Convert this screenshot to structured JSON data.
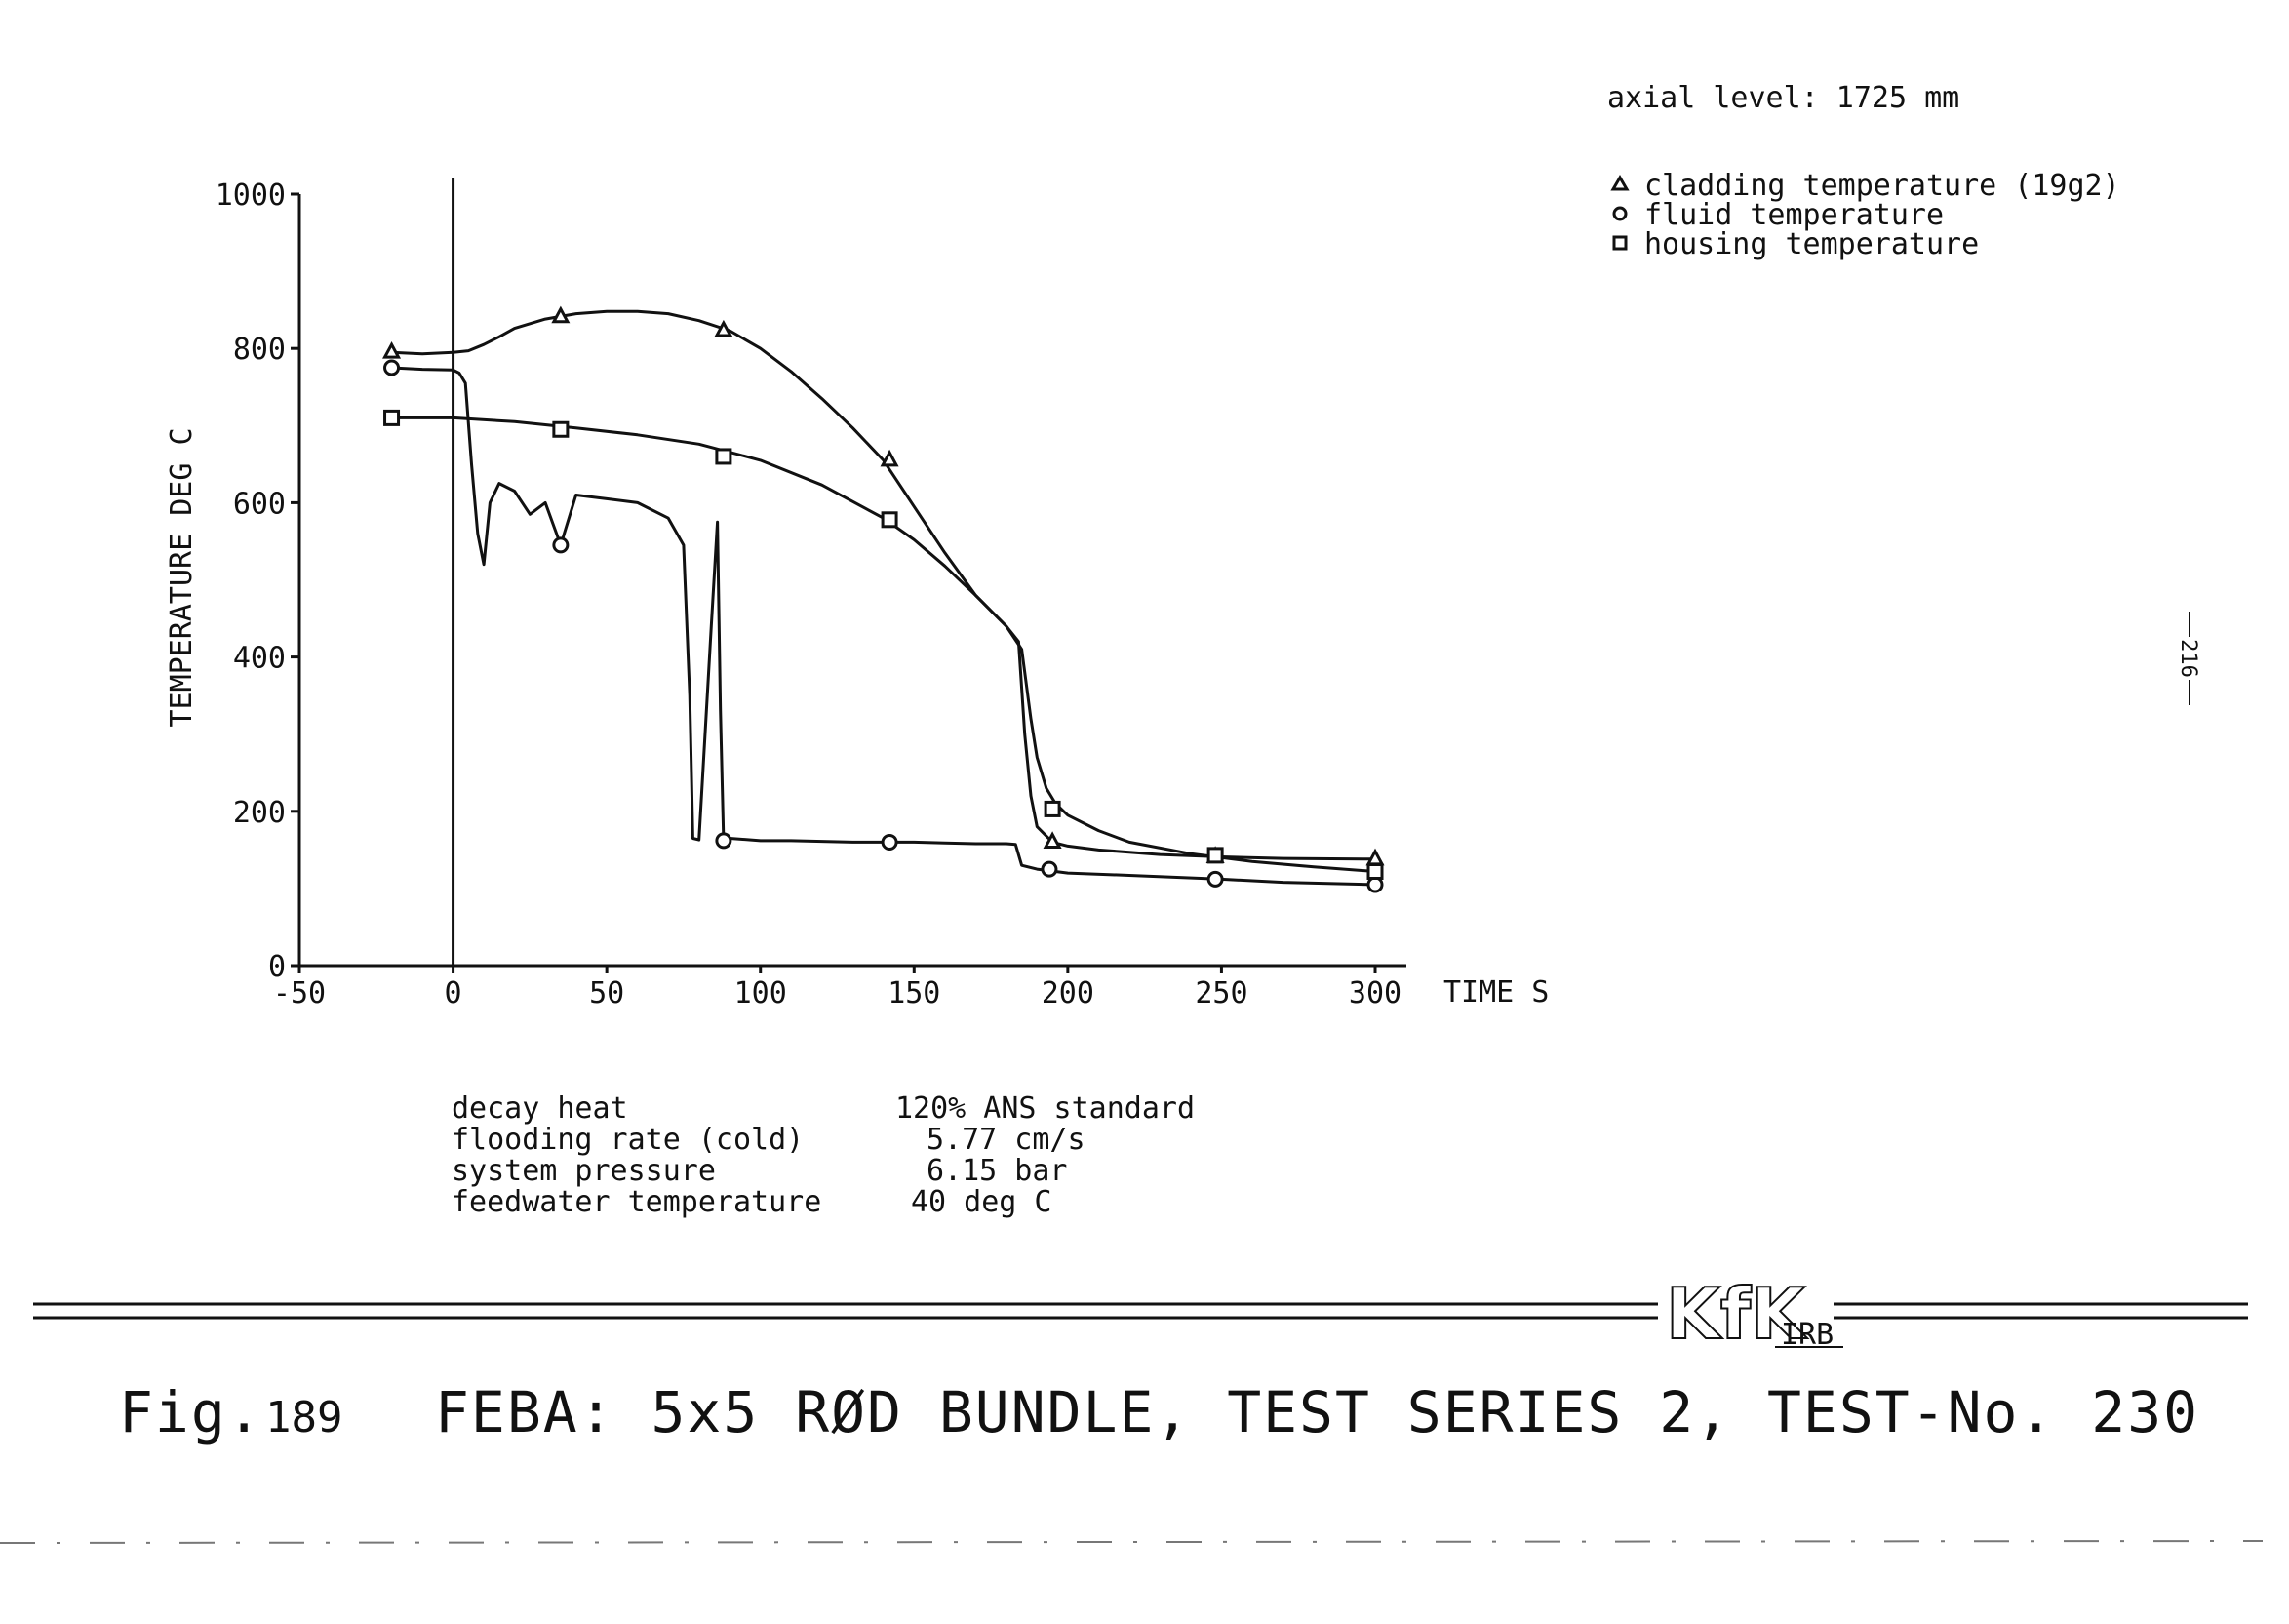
{
  "header": {
    "axial_level": "axial level: 1725 mm"
  },
  "legend": {
    "items": [
      {
        "marker": "triangle",
        "label": "cladding temperature (19g2)"
      },
      {
        "marker": "circle",
        "label": "fluid temperature"
      },
      {
        "marker": "square",
        "label": "housing temperature"
      }
    ]
  },
  "page_number": "216",
  "parameters": [
    {
      "name": "decay heat",
      "value": "120% ANS standard"
    },
    {
      "name": "flooding rate (cold)",
      "value": "5.77 cm/s"
    },
    {
      "name": "system pressure",
      "value": "6.15 bar"
    },
    {
      "name": "feedwater temperature",
      "value": "40 deg C"
    }
  ],
  "logo": {
    "mark": "KfK",
    "suffix": "IRB"
  },
  "caption": {
    "fig": "Fig.",
    "number": "189",
    "title": "FEBA: 5x5 RØD BUNDLE, TEST SERIES 2, TEST-No. 230"
  },
  "chart_data": {
    "type": "line",
    "xlabel": "TIME S",
    "ylabel": "TEMPERATURE DEG C",
    "xlim": [
      -50,
      300
    ],
    "ylim": [
      0,
      1000
    ],
    "xticks": [
      -50,
      0,
      50,
      100,
      150,
      200,
      250,
      300
    ],
    "xtick_labels": [
      "-50",
      "0",
      "50",
      "100",
      "150",
      "200",
      "250",
      "300"
    ],
    "yticks": [
      0,
      200,
      400,
      600,
      800,
      1000
    ],
    "ytick_labels": [
      "0",
      "200",
      "400",
      "600",
      "800",
      "1000"
    ],
    "grid": false,
    "legend_position": "top-right",
    "series": [
      {
        "name": "cladding temperature (19g2)",
        "marker": "triangle",
        "x": [
          -20,
          -10,
          0,
          5,
          10,
          15,
          20,
          30,
          40,
          50,
          60,
          70,
          80,
          90,
          100,
          110,
          120,
          130,
          140,
          150,
          160,
          170,
          180,
          184,
          186,
          188,
          190,
          195,
          200,
          210,
          220,
          230,
          250,
          270,
          300
        ],
        "y": [
          795,
          793,
          795,
          797,
          805,
          815,
          826,
          838,
          845,
          848,
          848,
          845,
          836,
          823,
          800,
          770,
          735,
          697,
          655,
          595,
          535,
          480,
          440,
          420,
          300,
          220,
          180,
          160,
          155,
          150,
          147,
          144,
          141,
          139,
          138
        ],
        "marker_x": [
          -20,
          35,
          88,
          142,
          195,
          248,
          300
        ],
        "marker_y": [
          795,
          841,
          823,
          655,
          160,
          141,
          138
        ]
      },
      {
        "name": "fluid temperature",
        "marker": "circle",
        "x": [
          -20,
          -10,
          0,
          2,
          4,
          6,
          8,
          10,
          12,
          15,
          20,
          25,
          30,
          35,
          40,
          50,
          60,
          70,
          75,
          77,
          78,
          80,
          84,
          86,
          87,
          88,
          90,
          100,
          110,
          120,
          130,
          140,
          150,
          160,
          170,
          180,
          183,
          185,
          190,
          200,
          220,
          250,
          270,
          300
        ],
        "y": [
          775,
          773,
          772,
          768,
          755,
          650,
          560,
          520,
          600,
          625,
          615,
          585,
          600,
          545,
          610,
          605,
          600,
          580,
          545,
          350,
          165,
          163,
          440,
          575,
          330,
          162,
          165,
          162,
          162,
          161,
          160,
          160,
          160,
          159,
          158,
          158,
          157,
          130,
          125,
          120,
          117,
          112,
          108,
          105
        ],
        "marker_x": [
          -20,
          35,
          88,
          142,
          194,
          248,
          300
        ],
        "marker_y": [
          775,
          545,
          162,
          160,
          125,
          112,
          105
        ]
      },
      {
        "name": "housing temperature",
        "marker": "square",
        "x": [
          -20,
          0,
          20,
          40,
          60,
          80,
          100,
          120,
          140,
          150,
          160,
          170,
          180,
          185,
          188,
          190,
          193,
          196,
          200,
          210,
          220,
          240,
          260,
          280,
          300
        ],
        "y": [
          710,
          710,
          705,
          697,
          688,
          676,
          655,
          623,
          580,
          552,
          518,
          480,
          440,
          410,
          320,
          270,
          230,
          210,
          195,
          175,
          160,
          145,
          135,
          128,
          122
        ],
        "marker_x": [
          -20,
          35,
          88,
          142,
          195,
          248,
          300
        ],
        "marker_y": [
          710,
          695,
          660,
          578,
          203,
          143,
          122
        ]
      }
    ]
  }
}
